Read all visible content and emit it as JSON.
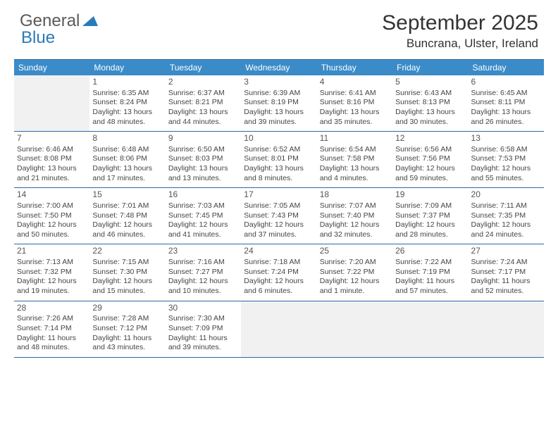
{
  "logo": {
    "text1": "General",
    "text2": "Blue"
  },
  "title": "September 2025",
  "location": "Buncrana, Ulster, Ireland",
  "colors": {
    "header_bg": "#3b8bc8",
    "header_text": "#ffffff",
    "border": "#2a6aa8",
    "empty_bg": "#f1f1f1",
    "text": "#444444",
    "logo_gray": "#5a5a5a",
    "logo_blue": "#2a7ab9"
  },
  "dayNames": [
    "Sunday",
    "Monday",
    "Tuesday",
    "Wednesday",
    "Thursday",
    "Friday",
    "Saturday"
  ],
  "weeks": [
    [
      null,
      {
        "n": "1",
        "sr": "Sunrise: 6:35 AM",
        "ss": "Sunset: 8:24 PM",
        "dl": "Daylight: 13 hours and 48 minutes."
      },
      {
        "n": "2",
        "sr": "Sunrise: 6:37 AM",
        "ss": "Sunset: 8:21 PM",
        "dl": "Daylight: 13 hours and 44 minutes."
      },
      {
        "n": "3",
        "sr": "Sunrise: 6:39 AM",
        "ss": "Sunset: 8:19 PM",
        "dl": "Daylight: 13 hours and 39 minutes."
      },
      {
        "n": "4",
        "sr": "Sunrise: 6:41 AM",
        "ss": "Sunset: 8:16 PM",
        "dl": "Daylight: 13 hours and 35 minutes."
      },
      {
        "n": "5",
        "sr": "Sunrise: 6:43 AM",
        "ss": "Sunset: 8:13 PM",
        "dl": "Daylight: 13 hours and 30 minutes."
      },
      {
        "n": "6",
        "sr": "Sunrise: 6:45 AM",
        "ss": "Sunset: 8:11 PM",
        "dl": "Daylight: 13 hours and 26 minutes."
      }
    ],
    [
      {
        "n": "7",
        "sr": "Sunrise: 6:46 AM",
        "ss": "Sunset: 8:08 PM",
        "dl": "Daylight: 13 hours and 21 minutes."
      },
      {
        "n": "8",
        "sr": "Sunrise: 6:48 AM",
        "ss": "Sunset: 8:06 PM",
        "dl": "Daylight: 13 hours and 17 minutes."
      },
      {
        "n": "9",
        "sr": "Sunrise: 6:50 AM",
        "ss": "Sunset: 8:03 PM",
        "dl": "Daylight: 13 hours and 13 minutes."
      },
      {
        "n": "10",
        "sr": "Sunrise: 6:52 AM",
        "ss": "Sunset: 8:01 PM",
        "dl": "Daylight: 13 hours and 8 minutes."
      },
      {
        "n": "11",
        "sr": "Sunrise: 6:54 AM",
        "ss": "Sunset: 7:58 PM",
        "dl": "Daylight: 13 hours and 4 minutes."
      },
      {
        "n": "12",
        "sr": "Sunrise: 6:56 AM",
        "ss": "Sunset: 7:56 PM",
        "dl": "Daylight: 12 hours and 59 minutes."
      },
      {
        "n": "13",
        "sr": "Sunrise: 6:58 AM",
        "ss": "Sunset: 7:53 PM",
        "dl": "Daylight: 12 hours and 55 minutes."
      }
    ],
    [
      {
        "n": "14",
        "sr": "Sunrise: 7:00 AM",
        "ss": "Sunset: 7:50 PM",
        "dl": "Daylight: 12 hours and 50 minutes."
      },
      {
        "n": "15",
        "sr": "Sunrise: 7:01 AM",
        "ss": "Sunset: 7:48 PM",
        "dl": "Daylight: 12 hours and 46 minutes."
      },
      {
        "n": "16",
        "sr": "Sunrise: 7:03 AM",
        "ss": "Sunset: 7:45 PM",
        "dl": "Daylight: 12 hours and 41 minutes."
      },
      {
        "n": "17",
        "sr": "Sunrise: 7:05 AM",
        "ss": "Sunset: 7:43 PM",
        "dl": "Daylight: 12 hours and 37 minutes."
      },
      {
        "n": "18",
        "sr": "Sunrise: 7:07 AM",
        "ss": "Sunset: 7:40 PM",
        "dl": "Daylight: 12 hours and 32 minutes."
      },
      {
        "n": "19",
        "sr": "Sunrise: 7:09 AM",
        "ss": "Sunset: 7:37 PM",
        "dl": "Daylight: 12 hours and 28 minutes."
      },
      {
        "n": "20",
        "sr": "Sunrise: 7:11 AM",
        "ss": "Sunset: 7:35 PM",
        "dl": "Daylight: 12 hours and 24 minutes."
      }
    ],
    [
      {
        "n": "21",
        "sr": "Sunrise: 7:13 AM",
        "ss": "Sunset: 7:32 PM",
        "dl": "Daylight: 12 hours and 19 minutes."
      },
      {
        "n": "22",
        "sr": "Sunrise: 7:15 AM",
        "ss": "Sunset: 7:30 PM",
        "dl": "Daylight: 12 hours and 15 minutes."
      },
      {
        "n": "23",
        "sr": "Sunrise: 7:16 AM",
        "ss": "Sunset: 7:27 PM",
        "dl": "Daylight: 12 hours and 10 minutes."
      },
      {
        "n": "24",
        "sr": "Sunrise: 7:18 AM",
        "ss": "Sunset: 7:24 PM",
        "dl": "Daylight: 12 hours and 6 minutes."
      },
      {
        "n": "25",
        "sr": "Sunrise: 7:20 AM",
        "ss": "Sunset: 7:22 PM",
        "dl": "Daylight: 12 hours and 1 minute."
      },
      {
        "n": "26",
        "sr": "Sunrise: 7:22 AM",
        "ss": "Sunset: 7:19 PM",
        "dl": "Daylight: 11 hours and 57 minutes."
      },
      {
        "n": "27",
        "sr": "Sunrise: 7:24 AM",
        "ss": "Sunset: 7:17 PM",
        "dl": "Daylight: 11 hours and 52 minutes."
      }
    ],
    [
      {
        "n": "28",
        "sr": "Sunrise: 7:26 AM",
        "ss": "Sunset: 7:14 PM",
        "dl": "Daylight: 11 hours and 48 minutes."
      },
      {
        "n": "29",
        "sr": "Sunrise: 7:28 AM",
        "ss": "Sunset: 7:12 PM",
        "dl": "Daylight: 11 hours and 43 minutes."
      },
      {
        "n": "30",
        "sr": "Sunrise: 7:30 AM",
        "ss": "Sunset: 7:09 PM",
        "dl": "Daylight: 11 hours and 39 minutes."
      },
      null,
      null,
      null,
      null
    ]
  ]
}
